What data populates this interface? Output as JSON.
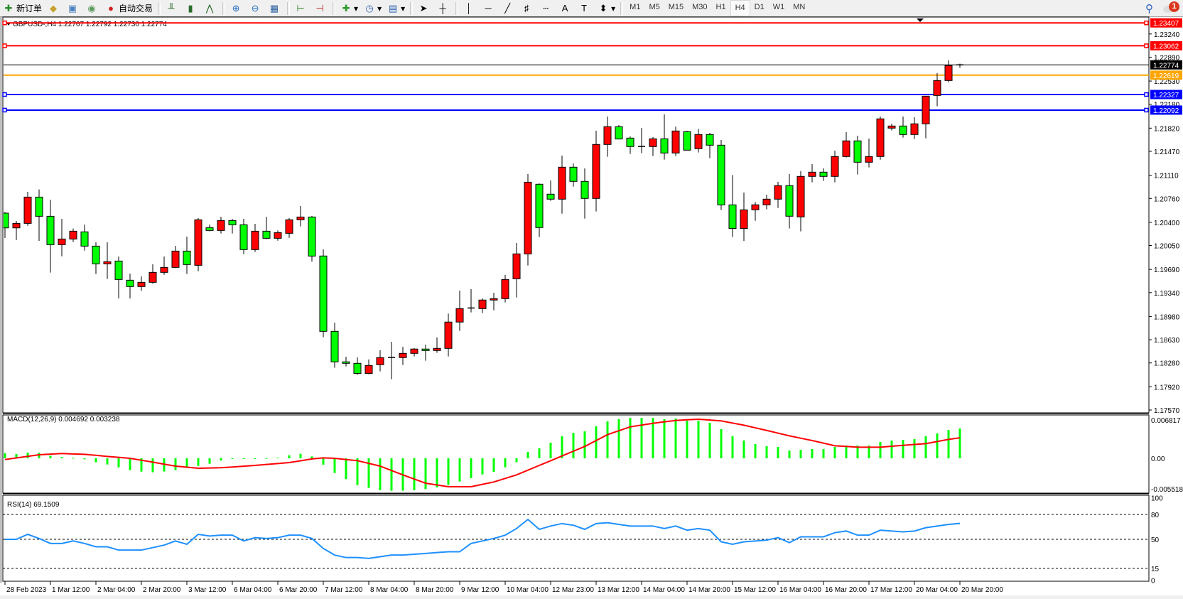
{
  "toolbar": {
    "new_order": "新订单",
    "auto_trading": "自动交易",
    "timeframes": [
      "M1",
      "M5",
      "M15",
      "M30",
      "H1",
      "H4",
      "D1",
      "W1",
      "MN"
    ],
    "active_timeframe": "H4",
    "notification_count": "1",
    "icons": [
      "new-order-icon",
      "history-icon",
      "navigator-icon",
      "signal-icon",
      "auto-trading-icon",
      "bar-chart-icon",
      "candlestick-icon",
      "line-chart-icon",
      "zoom-in-icon",
      "zoom-out-icon",
      "tile-windows-icon",
      "chart-shift-icon",
      "autoscroll-icon",
      "new-chart-icon",
      "periods-icon",
      "template-icon",
      "cursor-icon",
      "crosshair-icon",
      "vertical-line-icon",
      "horizontal-line-icon",
      "trendline-icon",
      "fibonacci-icon",
      "fibo-fan-icon",
      "text-icon",
      "text-label-icon",
      "arrows-icon",
      "search-icon",
      "chat-icon"
    ]
  },
  "chart": {
    "header": "GBPUSD-,H4  1.22767 1.22792 1.22730 1.22774",
    "colors": {
      "bull": "#ff0000",
      "bear": "#00ff00",
      "resistance": "#ff0000",
      "support": "#0000ff",
      "orange": "#ffa500",
      "bid": "#000000",
      "macd_hist": "#00ff00",
      "macd_signal": "#ff0000",
      "rsi": "#1e90ff"
    },
    "price_axis_labels": [
      "1.23240",
      "1.22890",
      "1.22530",
      "1.22180",
      "1.21820",
      "1.21470",
      "1.21110",
      "1.20760",
      "1.20400",
      "1.20050",
      "1.19690",
      "1.19340",
      "1.18980",
      "1.18630",
      "1.18280",
      "1.17920",
      "1.17570"
    ],
    "horizontal_lines": [
      {
        "price": "1.23407",
        "color": "#ff0000",
        "markers": true
      },
      {
        "price": "1.23062",
        "color": "#ff0000",
        "markers": true
      },
      {
        "price": "1.22774",
        "color": "#000000",
        "markers": false
      },
      {
        "price": "1.22619",
        "color": "#ffa500",
        "markers": false
      },
      {
        "price": "1.22327",
        "color": "#0000ff",
        "markers": true
      },
      {
        "price": "1.22092",
        "color": "#0000ff",
        "markers": true
      }
    ],
    "time_labels": [
      "28 Feb 2023",
      "1 Mar 12:00",
      "2 Mar 04:00",
      "2 Mar 20:00",
      "3 Mar 12:00",
      "6 Mar 04:00",
      "6 Mar 20:00",
      "7 Mar 12:00",
      "8 Mar 04:00",
      "8 Mar 20:00",
      "9 Mar 12:00",
      "10 Mar 04:00",
      "12 Mar 23:00",
      "13 Mar 12:00",
      "14 Mar 04:00",
      "14 Mar 20:00",
      "15 Mar 12:00",
      "16 Mar 04:00",
      "16 Mar 20:00",
      "17 Mar 12:00",
      "20 Mar 04:00",
      "20 Mar 20:00"
    ],
    "ohlc": [
      [
        1.20538,
        1.20556,
        1.20163,
        1.20316
      ],
      [
        1.20316,
        1.2042,
        1.20134,
        1.20384
      ],
      [
        1.20384,
        1.20859,
        1.20348,
        1.2078
      ],
      [
        1.2078,
        1.20895,
        1.2012,
        1.20491
      ],
      [
        1.20491,
        1.20741,
        1.19642,
        1.20063
      ],
      [
        1.20063,
        1.20452,
        1.19888,
        1.20148
      ],
      [
        1.20148,
        1.20306,
        1.20102,
        1.20266
      ],
      [
        1.20256,
        1.20366,
        1.19974,
        1.20041
      ],
      [
        1.20041,
        1.20098,
        1.1962,
        1.19774
      ],
      [
        1.19774,
        1.20098,
        1.19545,
        1.19806
      ],
      [
        1.19816,
        1.19884,
        1.19252,
        1.19538
      ],
      [
        1.19527,
        1.19627,
        1.19252,
        1.19431
      ],
      [
        1.19431,
        1.19584,
        1.19367,
        1.19495
      ],
      [
        1.19495,
        1.19766,
        1.19474,
        1.19645
      ],
      [
        1.19645,
        1.19884,
        1.19609,
        1.1972
      ],
      [
        1.1972,
        1.20045,
        1.19709,
        1.19966
      ],
      [
        1.19966,
        1.20184,
        1.1962,
        1.19763
      ],
      [
        1.19752,
        1.20463,
        1.19663,
        1.20438
      ],
      [
        1.2032,
        1.20366,
        1.20263,
        1.20277
      ],
      [
        1.20277,
        1.20484,
        1.20231,
        1.20427
      ],
      [
        1.20427,
        1.20452,
        1.20231,
        1.20363
      ],
      [
        1.20363,
        1.20452,
        1.1992,
        1.19988
      ],
      [
        1.19988,
        1.20377,
        1.19952,
        1.20266
      ],
      [
        1.20266,
        1.20484,
        1.20145,
        1.20159
      ],
      [
        1.20159,
        1.20277,
        1.20123,
        1.20245
      ],
      [
        1.20234,
        1.20463,
        1.20166,
        1.20438
      ],
      [
        1.20438,
        1.20645,
        1.20338,
        1.2048
      ],
      [
        1.2048,
        1.20495,
        1.19806,
        1.19891
      ],
      [
        1.19892,
        1.19992,
        1.18667,
        1.18756
      ],
      [
        1.18756,
        1.18888,
        1.18207,
        1.18296
      ],
      [
        1.18296,
        1.18374,
        1.18228,
        1.18274
      ],
      [
        1.18274,
        1.18364,
        1.181,
        1.18121
      ],
      [
        1.18121,
        1.18332,
        1.1811,
        1.18242
      ],
      [
        1.18253,
        1.18471,
        1.18153,
        1.1836
      ],
      [
        1.18362,
        1.18599,
        1.18032,
        1.18358
      ],
      [
        1.1836,
        1.18524,
        1.18249,
        1.18424
      ],
      [
        1.18424,
        1.18503,
        1.18378,
        1.18489
      ],
      [
        1.18489,
        1.18556,
        1.18314,
        1.18467
      ],
      [
        1.18467,
        1.18664,
        1.18432,
        1.18499
      ],
      [
        1.18499,
        1.19024,
        1.18378,
        1.18896
      ],
      [
        1.18896,
        1.1937,
        1.18763,
        1.19099
      ],
      [
        1.19104,
        1.19392,
        1.19042,
        1.19108
      ],
      [
        1.19099,
        1.19253,
        1.19031,
        1.19228
      ],
      [
        1.19228,
        1.19338,
        1.19074,
        1.19249
      ],
      [
        1.19249,
        1.19606,
        1.19192,
        1.19538
      ],
      [
        1.19549,
        1.20088,
        1.19267,
        1.19924
      ],
      [
        1.19924,
        1.21127,
        1.19749,
        1.21005
      ],
      [
        1.20974,
        1.20985,
        1.20178,
        1.20321
      ],
      [
        1.20824,
        1.21031,
        1.20724,
        1.20749
      ],
      [
        1.20749,
        1.21406,
        1.20531,
        1.21231
      ],
      [
        1.21231,
        1.21288,
        1.20938,
        1.21017
      ],
      [
        1.21017,
        1.21213,
        1.20456,
        1.2076
      ],
      [
        1.2076,
        1.21781,
        1.20563,
        1.21574
      ],
      [
        1.21574,
        1.21995,
        1.21388,
        1.21842
      ],
      [
        1.21842,
        1.21867,
        1.21656,
        1.21656
      ],
      [
        1.2167,
        1.21695,
        1.21431,
        1.21542
      ],
      [
        1.21544,
        1.21824,
        1.21442,
        1.2154
      ],
      [
        1.21542,
        1.21684,
        1.21399,
        1.21659
      ],
      [
        1.21659,
        1.22027,
        1.21345,
        1.21445
      ],
      [
        1.21445,
        1.21842,
        1.21399,
        1.21777
      ],
      [
        1.21767,
        1.21781,
        1.21488,
        1.21488
      ],
      [
        1.2151,
        1.21809,
        1.21452,
        1.21724
      ],
      [
        1.21724,
        1.21749,
        1.21367,
        1.21563
      ],
      [
        1.21563,
        1.21642,
        1.20585,
        1.20663
      ],
      [
        1.20663,
        1.21113,
        1.20178,
        1.20306
      ],
      [
        1.20306,
        1.20849,
        1.20117,
        1.20588
      ],
      [
        1.20589,
        1.20706,
        1.20424,
        1.20664
      ],
      [
        1.20664,
        1.20817,
        1.20596,
        1.20749
      ],
      [
        1.20749,
        1.2101,
        1.20617,
        1.20953
      ],
      [
        1.20953,
        1.21128,
        1.20307,
        1.20492
      ],
      [
        1.20482,
        1.21171,
        1.20264,
        1.21092
      ],
      [
        1.21092,
        1.21278,
        1.21003,
        1.21156
      ],
      [
        1.21156,
        1.21213,
        1.21024,
        1.21092
      ],
      [
        1.21092,
        1.21481,
        1.21003,
        1.21392
      ],
      [
        1.21392,
        1.2176,
        1.21378,
        1.21628
      ],
      [
        1.21628,
        1.21706,
        1.21121,
        1.21306
      ],
      [
        1.21306,
        1.21663,
        1.21228,
        1.21392
      ],
      [
        1.21392,
        1.21995,
        1.21346,
        1.2196
      ],
      [
        1.2182,
        1.21888,
        1.21785,
        1.21852
      ],
      [
        1.21852,
        1.21995,
        1.21678,
        1.21724
      ],
      [
        1.21724,
        1.21985,
        1.21656,
        1.21885
      ],
      [
        1.21885,
        1.22302,
        1.21667,
        1.22302
      ],
      [
        1.22313,
        1.22649,
        1.22149,
        1.22538
      ],
      [
        1.22538,
        1.22841,
        1.22513,
        1.22763
      ],
      [
        1.22767,
        1.22792,
        1.2273,
        1.22774
      ]
    ]
  },
  "macd": {
    "label": "MACD(12,26,9) 0.004692 0.003238",
    "axis_labels": [
      "0.006817",
      "0.00",
      "-0.005518"
    ],
    "histogram": [
      0.00082,
      0.00067,
      0.0009,
      0.0009,
      0.0004,
      0.00019,
      7e-05,
      -0.00015,
      -0.00063,
      -0.00097,
      -0.00142,
      -0.00187,
      -0.00209,
      -0.0022,
      -0.00209,
      -0.00187,
      -0.0015,
      -0.00119,
      -0.00086,
      -0.00037,
      -7e-05,
      -0.0001,
      -0.0001,
      4e-05,
      0.0001,
      0.00048,
      0.00071,
      0.0003,
      -0.001,
      -0.00231,
      -0.00328,
      -0.00421,
      -0.00466,
      -0.00504,
      -0.00511,
      -0.00511,
      -0.00504,
      -0.00485,
      -0.00459,
      -0.00421,
      -0.00366,
      -0.00313,
      -0.00254,
      -0.00213,
      -0.00142,
      -0.00063,
      0.00101,
      0.00157,
      0.00246,
      0.00347,
      0.00403,
      0.00425,
      0.00504,
      0.00582,
      0.00616,
      0.00638,
      0.00638,
      0.00638,
      0.00616,
      0.00627,
      0.00593,
      0.00593,
      0.0056,
      0.00459,
      0.00347,
      0.0028,
      0.00224,
      0.0019,
      0.00179,
      0.00123,
      0.00134,
      0.00146,
      0.00146,
      0.00179,
      0.00201,
      0.00201,
      0.00201,
      0.00257,
      0.0028,
      0.00291,
      0.00302,
      0.00347,
      0.00392,
      0.00448,
      0.004692
    ],
    "signal": [
      -0.00019,
      6e-05,
      0.00031,
      0.00056,
      0.00066,
      0.00075,
      0.00069,
      0.00063,
      0.00047,
      0.0003,
      0.00015,
      0,
      -0.0003,
      -0.0006,
      -0.00092,
      -0.00123,
      -0.0014,
      -0.00157,
      -0.00153,
      -0.00149,
      -0.00137,
      -0.00125,
      -0.00112,
      -0.00097,
      -0.00082,
      -0.00067,
      -0.00039,
      -0.0001,
      7e-05,
      0,
      -0.00019,
      -0.00037,
      -0.0008,
      -0.00123,
      -0.00192,
      -0.00261,
      -0.00327,
      -0.00392,
      -0.0042,
      -0.00448,
      -0.00448,
      -0.00448,
      -0.0041,
      -0.00373,
      -0.00317,
      -0.00261,
      -0.00187,
      -0.00112,
      -0.00038,
      0.00037,
      0.00112,
      0.00187,
      0.0028,
      0.00373,
      0.00435,
      0.00496,
      0.00524,
      0.00552,
      0.00575,
      0.00597,
      0.00607,
      0.00616,
      0.00603,
      0.0059,
      0.00556,
      0.00522,
      0.00481,
      0.0044,
      0.00397,
      0.00354,
      0.00317,
      0.0028,
      0.00239,
      0.00198,
      0.00187,
      0.00175,
      0.00175,
      0.00175,
      0.0019,
      0.00205,
      0.00218,
      0.00231,
      0.00265,
      0.00298,
      0.003238
    ]
  },
  "rsi": {
    "label": "RSI(14) 69.1509",
    "axis_labels": [
      "100",
      "80",
      "50",
      "15",
      "0"
    ],
    "levels": [
      80,
      50,
      15
    ],
    "values": [
      50,
      50,
      56,
      51,
      45,
      45,
      48,
      45,
      41,
      41,
      37,
      37,
      37,
      40,
      43,
      48,
      44,
      56,
      54,
      55,
      55,
      48,
      52,
      51,
      52,
      55,
      55,
      51,
      39,
      31,
      28,
      28,
      27,
      29,
      31,
      31,
      32,
      33,
      34,
      35,
      35,
      45,
      48,
      51,
      55,
      63,
      74,
      62,
      66,
      69,
      67,
      62,
      69,
      70,
      68,
      66,
      66,
      66,
      63,
      66,
      61,
      63,
      61,
      47,
      44,
      47,
      48,
      49,
      52,
      46,
      53,
      53,
      53,
      58,
      60,
      55,
      55,
      61,
      60,
      59,
      60,
      64,
      66,
      68,
      69.15
    ]
  }
}
